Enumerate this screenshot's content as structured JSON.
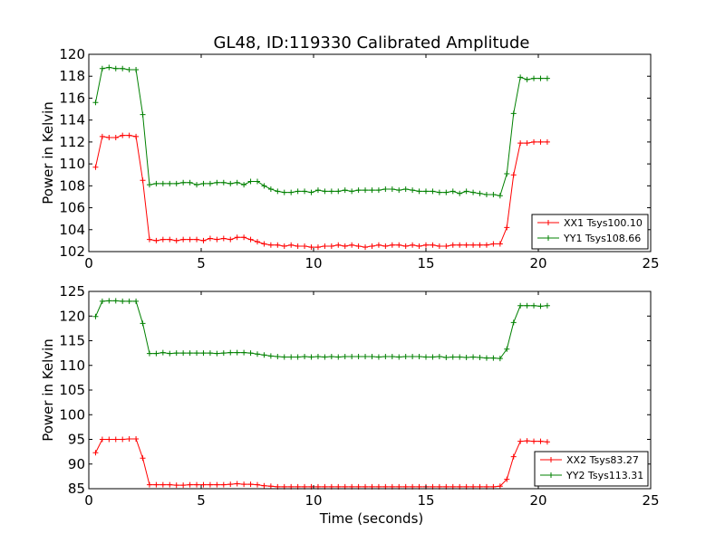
{
  "figure": {
    "title": "GL48, ID:119330 Calibrated Amplitude",
    "xlabel": "Time (seconds)"
  },
  "colors": {
    "XX": "#ff0000",
    "YY": "#008000"
  },
  "chart_data": [
    {
      "type": "line",
      "title": "GL48, ID:119330 Calibrated Amplitude",
      "xlabel": "",
      "ylabel": "Power in Kelvin",
      "xlim": [
        0,
        25
      ],
      "ylim": [
        102,
        120
      ],
      "xticks": [
        "0",
        "5",
        "10",
        "15",
        "20",
        "25"
      ],
      "yticks": [
        "102",
        "104",
        "106",
        "108",
        "110",
        "112",
        "114",
        "116",
        "118",
        "120"
      ],
      "legend_position": "lower-right",
      "x": [
        0.3,
        0.6,
        0.9,
        1.2,
        1.5,
        1.8,
        2.1,
        2.4,
        2.7,
        3.0,
        3.3,
        3.6,
        3.9,
        4.2,
        4.5,
        4.8,
        5.1,
        5.4,
        5.7,
        6.0,
        6.3,
        6.6,
        6.9,
        7.2,
        7.5,
        7.8,
        8.1,
        8.4,
        8.7,
        9.0,
        9.3,
        9.6,
        9.9,
        10.2,
        10.5,
        10.8,
        11.1,
        11.4,
        11.7,
        12.0,
        12.3,
        12.6,
        12.9,
        13.2,
        13.5,
        13.8,
        14.1,
        14.4,
        14.7,
        15.0,
        15.3,
        15.6,
        15.9,
        16.2,
        16.5,
        16.8,
        17.1,
        17.4,
        17.7,
        18.0,
        18.3,
        18.6,
        18.9,
        19.2,
        19.5,
        19.8,
        20.1,
        20.4
      ],
      "series": [
        {
          "name": "XX1 Tsys100.10",
          "color": "#ff0000",
          "values": [
            109.7,
            112.5,
            112.4,
            112.4,
            112.6,
            112.6,
            112.5,
            108.5,
            103.1,
            103.0,
            103.1,
            103.1,
            103.0,
            103.1,
            103.1,
            103.1,
            103.0,
            103.2,
            103.1,
            103.2,
            103.1,
            103.3,
            103.3,
            103.1,
            102.9,
            102.7,
            102.6,
            102.6,
            102.5,
            102.6,
            102.5,
            102.5,
            102.4,
            102.4,
            102.5,
            102.5,
            102.6,
            102.5,
            102.6,
            102.5,
            102.4,
            102.5,
            102.6,
            102.5,
            102.6,
            102.6,
            102.5,
            102.6,
            102.5,
            102.6,
            102.6,
            102.5,
            102.5,
            102.6,
            102.6,
            102.6,
            102.6,
            102.6,
            102.6,
            102.7,
            102.7,
            104.2,
            109.0,
            111.9,
            111.9,
            112.0,
            112.0,
            112.0
          ]
        },
        {
          "name": "YY1 Tsys108.66",
          "color": "#008000",
          "values": [
            115.6,
            118.7,
            118.8,
            118.7,
            118.7,
            118.6,
            118.6,
            114.5,
            108.1,
            108.2,
            108.2,
            108.2,
            108.2,
            108.3,
            108.3,
            108.1,
            108.2,
            108.2,
            108.3,
            108.3,
            108.2,
            108.3,
            108.1,
            108.4,
            108.4,
            108.0,
            107.7,
            107.5,
            107.4,
            107.4,
            107.5,
            107.5,
            107.4,
            107.6,
            107.5,
            107.5,
            107.5,
            107.6,
            107.5,
            107.6,
            107.6,
            107.6,
            107.6,
            107.7,
            107.7,
            107.6,
            107.7,
            107.6,
            107.5,
            107.5,
            107.5,
            107.4,
            107.4,
            107.5,
            107.3,
            107.5,
            107.4,
            107.3,
            107.2,
            107.2,
            107.1,
            109.1,
            114.6,
            117.9,
            117.7,
            117.8,
            117.8,
            117.8
          ]
        }
      ]
    },
    {
      "type": "line",
      "title": "",
      "xlabel": "Time (seconds)",
      "ylabel": "Power in Kelvin",
      "xlim": [
        0,
        25
      ],
      "ylim": [
        85,
        125
      ],
      "xticks": [
        "0",
        "5",
        "10",
        "15",
        "20",
        "25"
      ],
      "yticks": [
        "85",
        "90",
        "95",
        "100",
        "105",
        "110",
        "115",
        "120",
        "125"
      ],
      "legend_position": "lower-right",
      "x": [
        0.3,
        0.6,
        0.9,
        1.2,
        1.5,
        1.8,
        2.1,
        2.4,
        2.7,
        3.0,
        3.3,
        3.6,
        3.9,
        4.2,
        4.5,
        4.8,
        5.1,
        5.4,
        5.7,
        6.0,
        6.3,
        6.6,
        6.9,
        7.2,
        7.5,
        7.8,
        8.1,
        8.4,
        8.7,
        9.0,
        9.3,
        9.6,
        9.9,
        10.2,
        10.5,
        10.8,
        11.1,
        11.4,
        11.7,
        12.0,
        12.3,
        12.6,
        12.9,
        13.2,
        13.5,
        13.8,
        14.1,
        14.4,
        14.7,
        15.0,
        15.3,
        15.6,
        15.9,
        16.2,
        16.5,
        16.8,
        17.1,
        17.4,
        17.7,
        18.0,
        18.3,
        18.6,
        18.9,
        19.2,
        19.5,
        19.8,
        20.1,
        20.4
      ],
      "series": [
        {
          "name": "XX2 Tsys83.27",
          "color": "#ff0000",
          "values": [
            92.3,
            95.0,
            95.0,
            95.0,
            95.0,
            95.1,
            95.1,
            91.2,
            85.8,
            85.8,
            85.8,
            85.8,
            85.7,
            85.7,
            85.8,
            85.8,
            85.8,
            85.8,
            85.8,
            85.8,
            85.9,
            86.0,
            85.9,
            85.9,
            85.8,
            85.6,
            85.5,
            85.4,
            85.4,
            85.4,
            85.4,
            85.4,
            85.4,
            85.4,
            85.4,
            85.4,
            85.4,
            85.4,
            85.4,
            85.4,
            85.4,
            85.4,
            85.4,
            85.4,
            85.4,
            85.4,
            85.4,
            85.4,
            85.4,
            85.4,
            85.4,
            85.4,
            85.4,
            85.4,
            85.4,
            85.4,
            85.4,
            85.4,
            85.4,
            85.4,
            85.5,
            86.9,
            91.5,
            94.6,
            94.7,
            94.6,
            94.6,
            94.5
          ]
        },
        {
          "name": "YY2 Tsys113.31",
          "color": "#008000",
          "values": [
            119.9,
            123.0,
            123.1,
            123.1,
            123.0,
            123.0,
            123.0,
            118.5,
            112.4,
            112.4,
            112.6,
            112.4,
            112.5,
            112.5,
            112.5,
            112.5,
            112.5,
            112.5,
            112.4,
            112.5,
            112.6,
            112.6,
            112.6,
            112.5,
            112.3,
            112.1,
            111.9,
            111.8,
            111.7,
            111.7,
            111.7,
            111.8,
            111.7,
            111.8,
            111.7,
            111.8,
            111.7,
            111.8,
            111.8,
            111.8,
            111.8,
            111.8,
            111.7,
            111.8,
            111.8,
            111.7,
            111.8,
            111.8,
            111.8,
            111.7,
            111.7,
            111.8,
            111.6,
            111.7,
            111.7,
            111.6,
            111.7,
            111.6,
            111.5,
            111.5,
            111.4,
            113.3,
            118.7,
            122.1,
            122.1,
            122.1,
            122.0,
            122.1
          ]
        }
      ]
    }
  ]
}
